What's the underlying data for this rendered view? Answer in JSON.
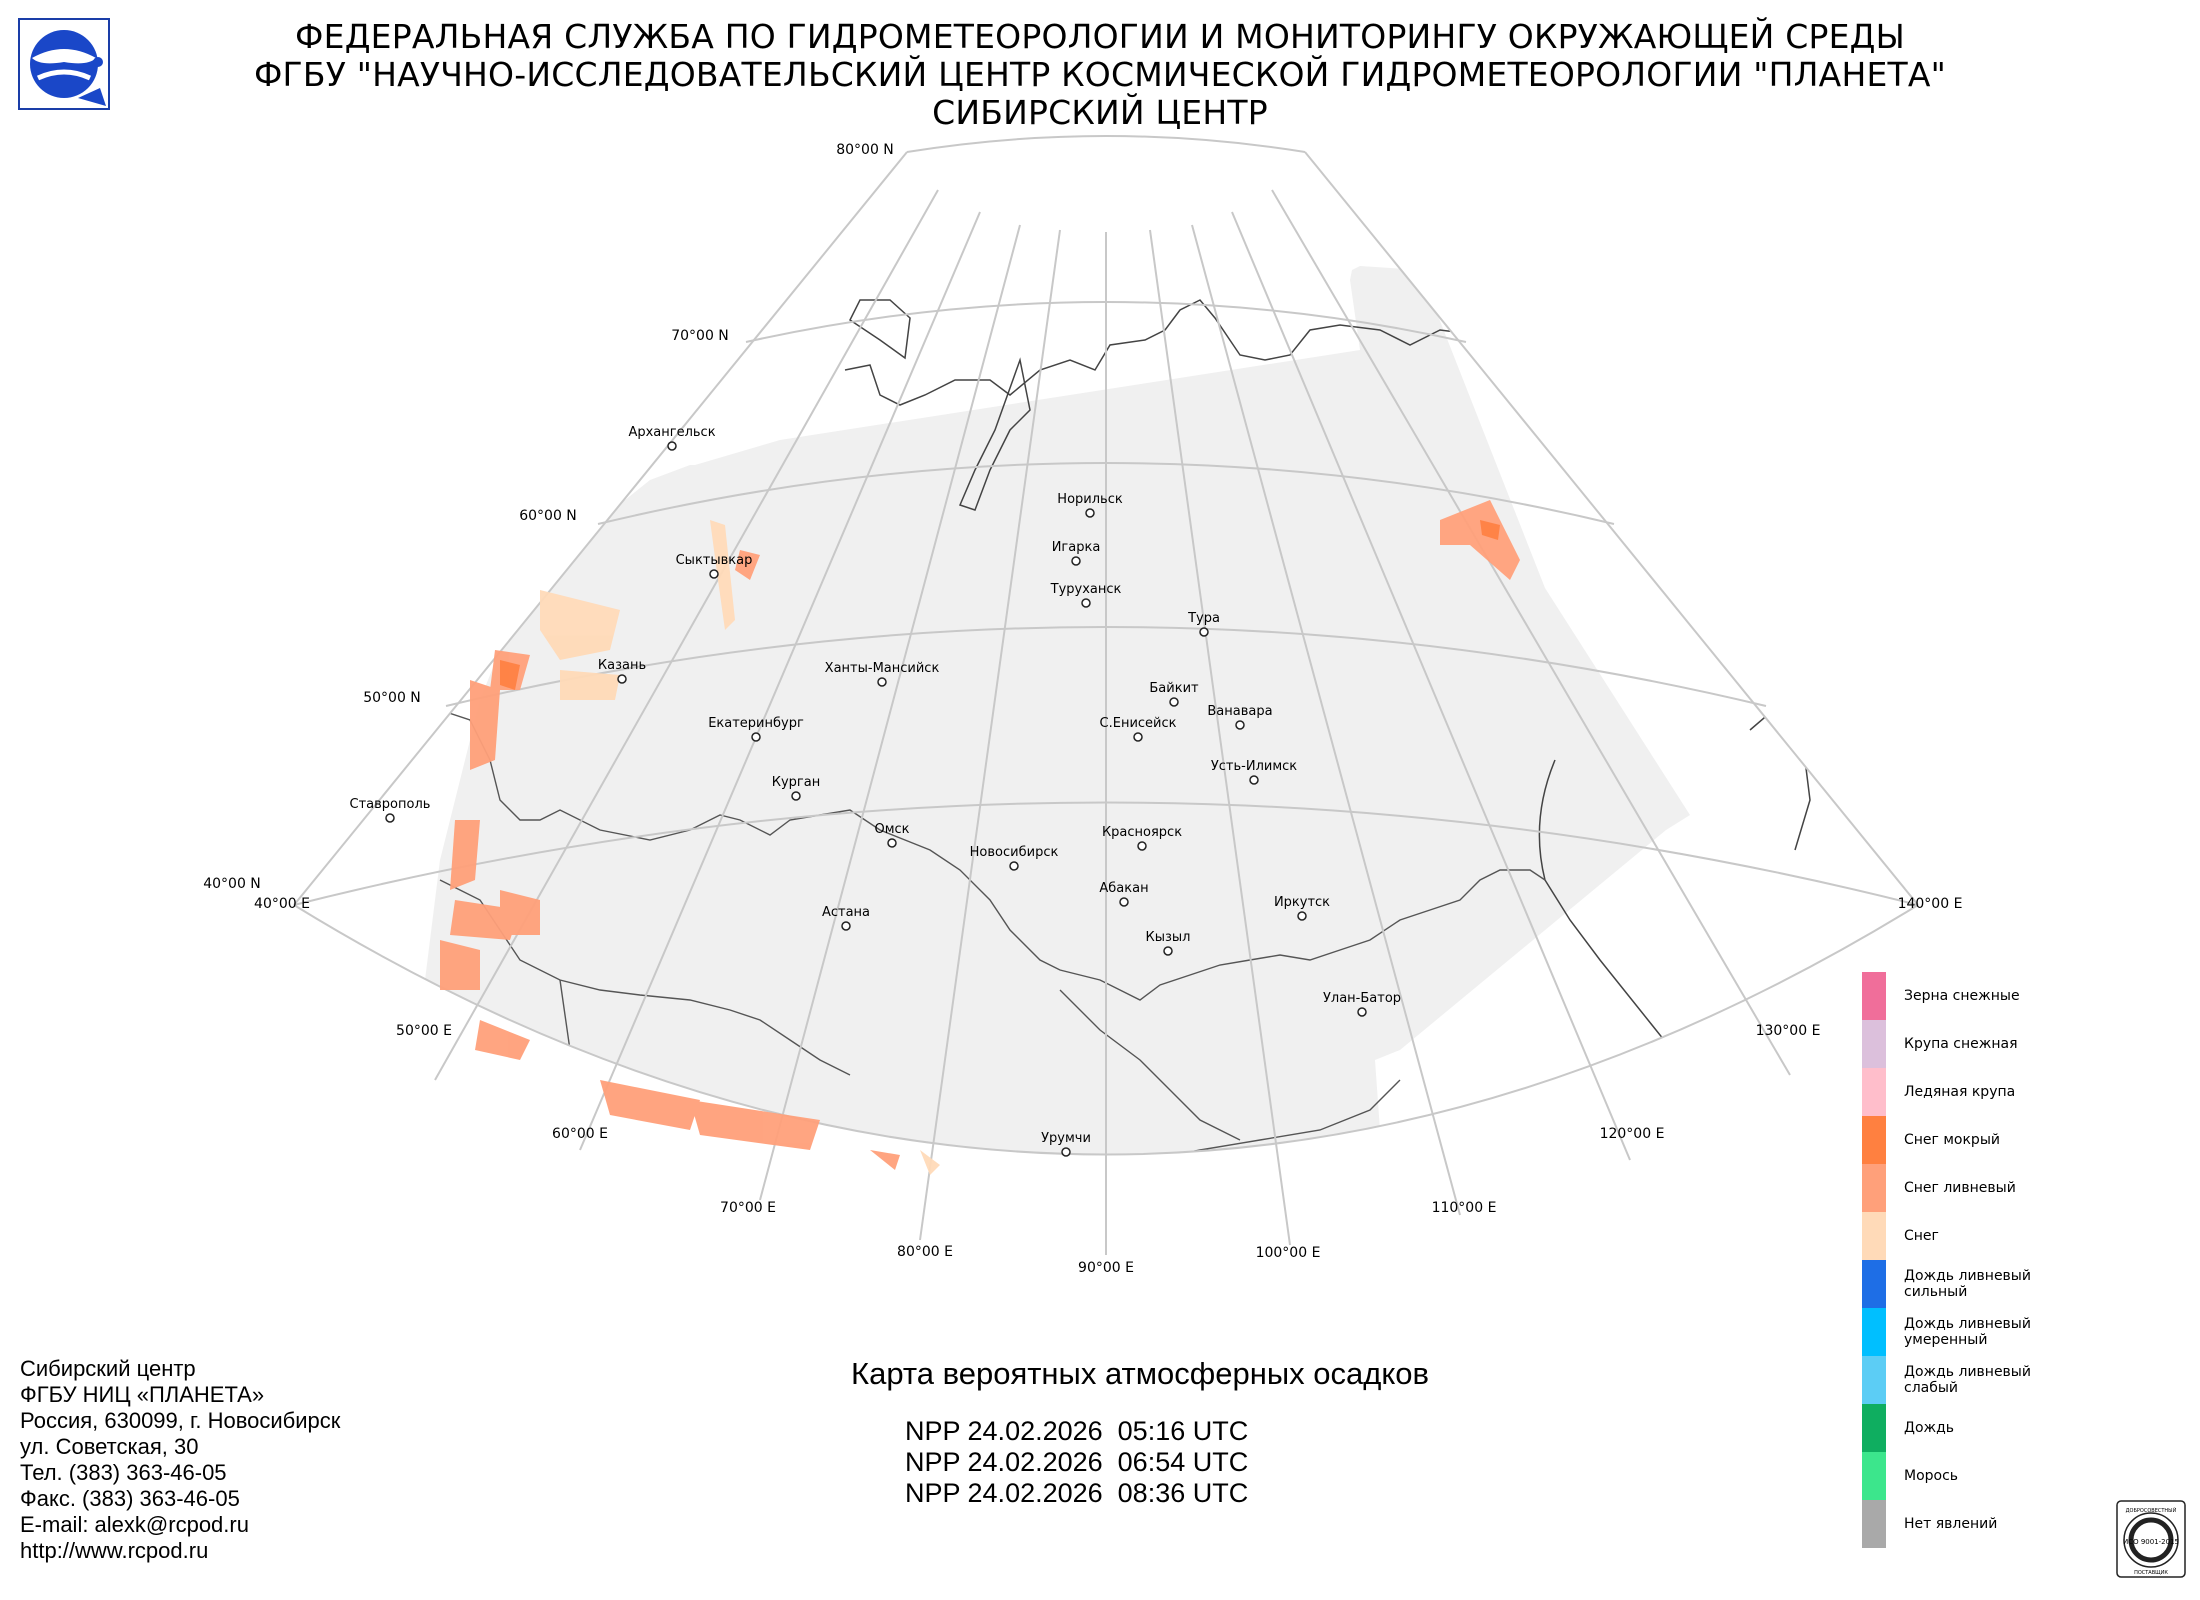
{
  "header": {
    "line1": "ФЕДЕРАЛЬНАЯ СЛУЖБА ПО ГИДРОМЕТЕОРОЛОГИИ И МОНИТОРИНГУ ОКРУЖАЮЩЕЙ СРЕДЫ",
    "line2": "ФГБУ \"НАУЧНО-ИССЛЕДОВАТЕЛЬСКИЙ ЦЕНТР КОСМИЧЕСКОЙ ГИДРОМЕТЕОРОЛОГИИ \"ПЛАНЕТА\"",
    "line3": "СИБИРСКИЙ ЦЕНТР"
  },
  "map": {
    "lat_labels": [
      "80°00 N",
      "70°00 N",
      "60°00 N",
      "50°00 N",
      "40°00 N"
    ],
    "lon_labels": [
      "40°00 E",
      "50°00 E",
      "60°00 E",
      "70°00 E",
      "80°00 E",
      "90°00 E",
      "100°00 E",
      "110°00 E",
      "120°00 E",
      "130°00 E",
      "140°00 E"
    ],
    "cities": [
      "Архангельск",
      "Норильск",
      "Игарка",
      "Туруханск",
      "Тура",
      "Сыктывкар",
      "Казань",
      "Ханты-Мансийск",
      "Байкит",
      "Ванавара",
      "С.Енисейск",
      "Екатеринбург",
      "Усть-Илимск",
      "Курган",
      "Ставрополь",
      "Омск",
      "Красноярск",
      "Новосибирск",
      "Абакан",
      "Иркутск",
      "Астана",
      "Кызыл",
      "Улан-Батор",
      "Урумчи"
    ]
  },
  "legend": [
    {
      "label": "Зерна снежные",
      "color": "#f06e9a"
    },
    {
      "label": "Крупа снежная",
      "color": "#dcc0dc"
    },
    {
      "label": "Ледяная крупа",
      "color": "#ffbecb"
    },
    {
      "label": "Снег мокрый",
      "color": "#ff8040"
    },
    {
      "label": "Снег ливневый",
      "color": "#ffa07a"
    },
    {
      "label": "Снег",
      "color": "#ffdab8"
    },
    {
      "label": "Дождь ливневый сильный",
      "color": "#1e6ee6"
    },
    {
      "label": "Дождь ливневый умеренный",
      "color": "#00bfff"
    },
    {
      "label": "Дождь ливневый слабый",
      "color": "#5ccdf5"
    },
    {
      "label": "Дождь",
      "color": "#0fae60"
    },
    {
      "label": "Морось",
      "color": "#3ce68c"
    },
    {
      "label": "Нет явлений",
      "color": "#a9a9a9"
    }
  ],
  "map_title": "Карта вероятных атмосферных осадков",
  "passes": [
    "NPP 24.02.2026  05:16 UTC",
    "NPP 24.02.2026  06:54 UTC",
    "NPP 24.02.2026  08:36 UTC"
  ],
  "contact": [
    "Сибирский центр",
    "ФГБУ НИЦ «ПЛАНЕТА»",
    "Россия, 630099, г. Новосибирск",
    "ул. Советская, 30",
    "Тел. (383) 363-46-05",
    "Факс. (383) 363-46-05",
    "E-mail: alexk@rcpod.ru",
    "http://www.rcpod.ru"
  ],
  "iso_badge": {
    "top": "ДОБРОСОВЕСТНЫЙ",
    "mid": "ИСО 9001-2015",
    "bottom": "ПОСТАВЩИК"
  }
}
